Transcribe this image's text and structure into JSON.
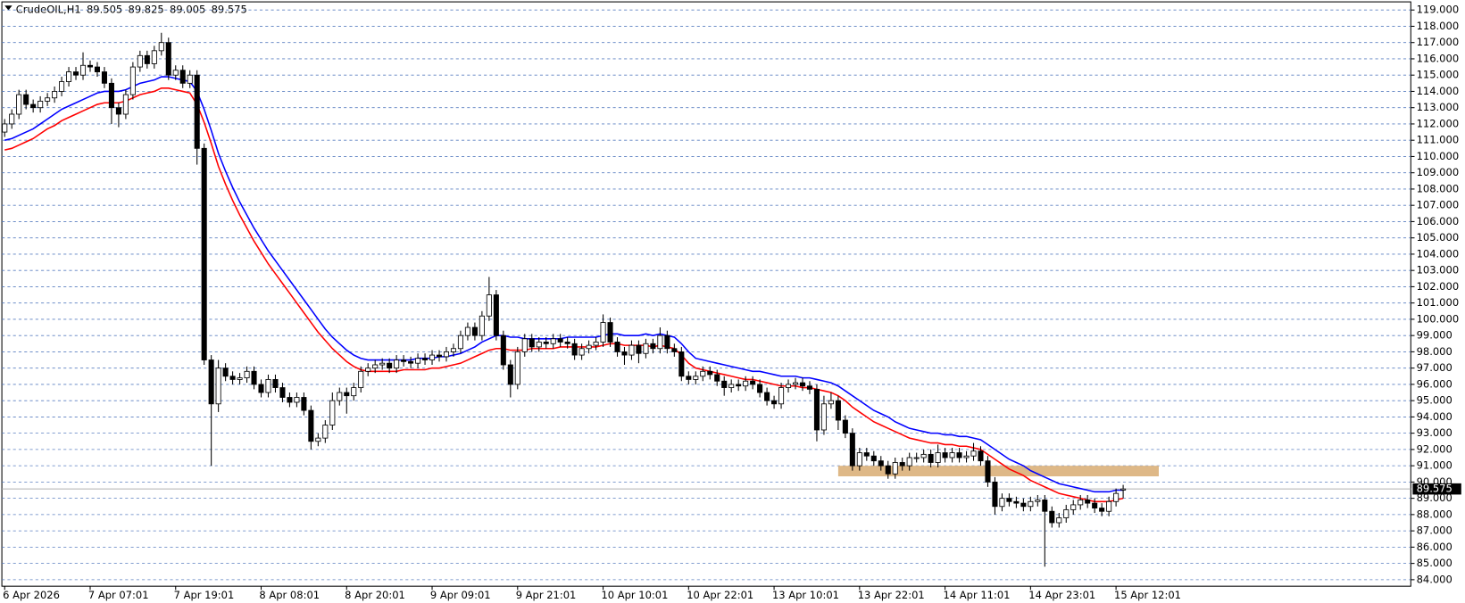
{
  "chart_data": {
    "type": "candlestick",
    "symbol": "CrudeOIL,H1",
    "categories": [
      "6 Apr 2026",
      null,
      null,
      null,
      null,
      null,
      null,
      null,
      null,
      null,
      null,
      null,
      "7 Apr 07:01",
      null,
      null,
      null,
      null,
      null,
      null,
      null,
      null,
      null,
      null,
      null,
      "7 Apr 19:01",
      null,
      null,
      null,
      null,
      null,
      null,
      null,
      null,
      null,
      null,
      null,
      "8 Apr 08:01",
      null,
      null,
      null,
      null,
      null,
      null,
      null,
      null,
      null,
      null,
      null,
      "8 Apr 20:01",
      null,
      null,
      null,
      null,
      null,
      null,
      null,
      null,
      null,
      null,
      null,
      "9 Apr 09:01",
      null,
      null,
      null,
      null,
      null,
      null,
      null,
      null,
      null,
      null,
      null,
      "9 Apr 21:01",
      null,
      null,
      null,
      null,
      null,
      null,
      null,
      null,
      null,
      null,
      null,
      "10 Apr 10:01",
      null,
      null,
      null,
      null,
      null,
      null,
      null,
      null,
      null,
      null,
      null,
      "10 Apr 22:01",
      null,
      null,
      null,
      null,
      null,
      null,
      null,
      null,
      null,
      null,
      null,
      "13 Apr 10:01",
      null,
      null,
      null,
      null,
      null,
      null,
      null,
      null,
      null,
      null,
      null,
      "13 Apr 22:01",
      null,
      null,
      null,
      null,
      null,
      null,
      null,
      null,
      null,
      null,
      null,
      "14 Apr 11:01",
      null,
      null,
      null,
      null,
      null,
      null,
      null,
      null,
      null,
      null,
      null,
      "14 Apr 23:01",
      null,
      null,
      null,
      null,
      null,
      null,
      null,
      null,
      null,
      null,
      null,
      "15 Apr 12:01",
      null
    ],
    "open": [
      111.5,
      112.0,
      112.6,
      113.8,
      113.2,
      113.0,
      113.4,
      113.6,
      114.0,
      114.6,
      115.2,
      115.0,
      115.6,
      115.5,
      115.2,
      114.5,
      113.0,
      112.6,
      113.8,
      115.5,
      116.2,
      115.7,
      116.5,
      117.0,
      115.0,
      115.3,
      114.5,
      115.0,
      110.5,
      97.5,
      94.8,
      97.0,
      96.5,
      96.3,
      96.4,
      96.8,
      96.0,
      95.5,
      96.3,
      95.8,
      95.2,
      94.9,
      95.2,
      94.4,
      92.5,
      92.7,
      93.5,
      95.0,
      95.5,
      95.3,
      95.8,
      96.8,
      97.0,
      97.2,
      97.3,
      97.0,
      97.5,
      97.4,
      97.3,
      97.6,
      97.5,
      97.8,
      97.7,
      98.0,
      98.2,
      99.0,
      99.5,
      99.0,
      100.2,
      101.5,
      99.0,
      97.2,
      96.0,
      98.0,
      98.8,
      98.3,
      98.6,
      98.5,
      98.8,
      98.6,
      98.5,
      97.8,
      98.2,
      98.4,
      98.6,
      99.8,
      98.6,
      98.0,
      97.8,
      98.4,
      97.9,
      98.5,
      98.2,
      99.0,
      98.2,
      98.0,
      96.5,
      96.3,
      96.5,
      96.8,
      96.6,
      96.2,
      95.8,
      96.0,
      95.9,
      96.2,
      96.0,
      95.5,
      95.0,
      94.8,
      95.8,
      96.0,
      96.1,
      95.9,
      95.7,
      93.2,
      94.8,
      95.0,
      93.8,
      93.0,
      91.0,
      91.8,
      91.6,
      91.3,
      91.0,
      90.5,
      91.2,
      91.0,
      91.5,
      91.5,
      91.7,
      91.2,
      91.8,
      91.5,
      91.8,
      91.5,
      91.6,
      91.9,
      91.3,
      90.0,
      88.5,
      89.0,
      88.8,
      88.7,
      88.5,
      88.8,
      88.9,
      88.2,
      87.5,
      87.8,
      88.3,
      88.6,
      88.9,
      88.7,
      88.4,
      88.2,
      88.8,
      89.505
    ],
    "high": [
      112.3,
      112.9,
      114.1,
      114.1,
      113.5,
      113.7,
      113.9,
      114.3,
      114.9,
      115.5,
      115.5,
      116.4,
      115.9,
      115.8,
      115.5,
      114.8,
      113.3,
      114.1,
      115.8,
      116.5,
      116.5,
      116.8,
      117.6,
      117.3,
      115.6,
      115.6,
      115.3,
      115.3,
      110.8,
      97.8,
      97.5,
      97.3,
      96.8,
      96.7,
      97.1,
      97.1,
      96.3,
      96.6,
      96.6,
      96.1,
      95.5,
      95.5,
      95.5,
      94.7,
      93.0,
      93.8,
      95.5,
      95.8,
      95.8,
      96.1,
      97.1,
      97.3,
      97.5,
      97.6,
      97.6,
      97.8,
      97.8,
      97.7,
      97.9,
      97.9,
      98.1,
      98.1,
      98.3,
      98.5,
      99.3,
      99.8,
      99.8,
      100.5,
      102.6,
      101.8,
      99.3,
      97.5,
      98.3,
      99.1,
      99.1,
      98.9,
      98.9,
      99.1,
      99.1,
      98.9,
      98.8,
      98.5,
      98.7,
      98.9,
      100.3,
      100.1,
      98.9,
      98.3,
      98.7,
      98.7,
      98.8,
      98.8,
      99.5,
      99.3,
      98.5,
      98.3,
      96.8,
      96.8,
      97.1,
      97.1,
      96.9,
      96.5,
      96.3,
      96.3,
      96.5,
      96.5,
      96.3,
      95.8,
      95.3,
      96.1,
      96.3,
      96.4,
      96.4,
      96.2,
      96.0,
      95.3,
      95.5,
      95.3,
      94.1,
      93.3,
      92.1,
      92.1,
      91.9,
      91.6,
      91.3,
      91.5,
      91.5,
      91.8,
      91.8,
      92.0,
      92.0,
      92.3,
      92.1,
      92.1,
      92.1,
      91.9,
      92.4,
      92.2,
      91.6,
      90.3,
      89.3,
      89.3,
      89.1,
      89.0,
      89.1,
      89.2,
      89.2,
      88.5,
      88.1,
      88.6,
      88.9,
      89.2,
      89.2,
      89.0,
      88.7,
      89.1,
      89.6,
      89.825
    ],
    "low": [
      111.2,
      111.7,
      112.3,
      112.9,
      112.7,
      112.7,
      113.1,
      113.3,
      113.7,
      114.3,
      114.7,
      114.7,
      115.2,
      114.9,
      114.2,
      112.0,
      111.8,
      112.3,
      113.5,
      115.2,
      115.4,
      115.4,
      116.2,
      114.7,
      114.7,
      114.2,
      114.2,
      109.5,
      97.2,
      91.0,
      94.3,
      96.2,
      96.0,
      96.0,
      96.1,
      95.7,
      95.2,
      95.2,
      95.5,
      94.9,
      94.6,
      94.6,
      94.1,
      92.0,
      92.2,
      92.4,
      93.2,
      94.7,
      94.2,
      95.0,
      95.5,
      96.5,
      96.7,
      96.9,
      96.7,
      96.7,
      97.1,
      97.0,
      97.0,
      97.2,
      97.2,
      97.4,
      97.4,
      97.7,
      97.9,
      98.7,
      98.7,
      98.7,
      99.9,
      98.7,
      96.9,
      95.2,
      95.7,
      97.7,
      98.0,
      98.0,
      98.2,
      98.2,
      98.3,
      98.2,
      97.5,
      97.5,
      97.9,
      98.1,
      98.3,
      98.3,
      97.7,
      97.2,
      97.5,
      97.3,
      97.6,
      97.9,
      97.9,
      97.9,
      97.7,
      96.2,
      96.0,
      96.0,
      96.2,
      96.3,
      95.9,
      95.3,
      95.5,
      95.6,
      95.6,
      95.7,
      95.2,
      94.7,
      94.5,
      94.5,
      95.5,
      95.7,
      95.6,
      95.4,
      92.5,
      92.9,
      94.5,
      93.2,
      92.7,
      90.7,
      90.7,
      91.3,
      91.0,
      90.7,
      90.2,
      90.2,
      90.7,
      90.7,
      91.2,
      91.2,
      90.9,
      90.9,
      91.2,
      91.2,
      91.2,
      91.2,
      91.3,
      91.0,
      89.7,
      88.0,
      88.2,
      88.5,
      88.4,
      88.2,
      88.2,
      88.5,
      84.8,
      87.2,
      87.2,
      87.5,
      88.0,
      88.3,
      88.4,
      88.1,
      87.9,
      87.9,
      88.5,
      89.005
    ],
    "close": [
      112.0,
      112.6,
      113.8,
      113.2,
      113.0,
      113.4,
      113.6,
      114.0,
      114.6,
      115.2,
      115.0,
      115.6,
      115.5,
      115.2,
      114.5,
      113.0,
      112.6,
      113.8,
      115.5,
      116.2,
      115.7,
      116.5,
      117.0,
      115.0,
      115.3,
      114.5,
      115.0,
      110.5,
      97.5,
      94.8,
      97.0,
      96.5,
      96.3,
      96.4,
      96.8,
      96.0,
      95.5,
      96.3,
      95.8,
      95.2,
      94.9,
      95.2,
      94.4,
      92.5,
      92.7,
      93.5,
      95.0,
      95.5,
      95.3,
      95.8,
      96.8,
      97.0,
      97.2,
      97.3,
      97.0,
      97.5,
      97.4,
      97.3,
      97.6,
      97.5,
      97.8,
      97.7,
      98.0,
      98.2,
      99.0,
      99.5,
      99.0,
      100.2,
      101.5,
      99.0,
      97.2,
      96.0,
      98.0,
      98.8,
      98.3,
      98.6,
      98.5,
      98.8,
      98.6,
      98.5,
      97.8,
      98.2,
      98.4,
      98.6,
      99.8,
      98.6,
      98.0,
      97.8,
      98.4,
      97.9,
      98.5,
      98.2,
      99.0,
      98.2,
      98.0,
      96.5,
      96.3,
      96.5,
      96.8,
      96.6,
      96.2,
      95.8,
      96.0,
      95.9,
      96.2,
      96.0,
      95.5,
      95.0,
      94.8,
      95.8,
      96.0,
      96.1,
      95.9,
      95.7,
      93.2,
      94.8,
      95.0,
      93.8,
      93.0,
      91.0,
      91.8,
      91.6,
      91.3,
      91.0,
      90.5,
      91.2,
      91.0,
      91.5,
      91.5,
      91.7,
      91.2,
      91.8,
      91.5,
      91.8,
      91.5,
      91.6,
      91.9,
      91.3,
      90.0,
      88.5,
      89.0,
      88.8,
      88.7,
      88.5,
      88.8,
      88.9,
      88.2,
      87.5,
      87.8,
      88.3,
      88.6,
      88.9,
      88.7,
      88.4,
      88.2,
      88.8,
      89.3,
      89.575
    ],
    "series": [
      {
        "color": "#0000ff",
        "values": [
          111.0,
          111.1,
          111.3,
          111.5,
          111.7,
          112.0,
          112.3,
          112.6,
          112.9,
          113.1,
          113.3,
          113.5,
          113.7,
          113.9,
          114.0,
          114.0,
          114.0,
          114.1,
          114.3,
          114.5,
          114.6,
          114.7,
          114.9,
          114.9,
          114.8,
          114.7,
          114.6,
          114.0,
          112.9,
          111.6,
          110.2,
          109.1,
          108.1,
          107.2,
          106.4,
          105.6,
          104.9,
          104.2,
          103.6,
          103.0,
          102.4,
          101.8,
          101.2,
          100.6,
          100.0,
          99.4,
          98.9,
          98.5,
          98.1,
          97.8,
          97.6,
          97.5,
          97.5,
          97.5,
          97.5,
          97.5,
          97.5,
          97.5,
          97.6,
          97.6,
          97.6,
          97.7,
          97.7,
          97.8,
          97.9,
          98.1,
          98.3,
          98.6,
          98.8,
          99.0,
          99.0,
          98.9,
          98.9,
          98.8,
          98.8,
          98.8,
          98.8,
          98.8,
          98.8,
          98.9,
          98.9,
          98.9,
          98.9,
          98.9,
          99.0,
          99.1,
          99.1,
          99.0,
          99.0,
          99.0,
          99.1,
          99.0,
          99.1,
          99.0,
          98.9,
          98.5,
          98.0,
          97.6,
          97.5,
          97.4,
          97.3,
          97.2,
          97.1,
          97.0,
          96.9,
          96.8,
          96.8,
          96.7,
          96.6,
          96.5,
          96.5,
          96.5,
          96.4,
          96.4,
          96.3,
          96.2,
          96.1,
          95.9,
          95.6,
          95.3,
          95.0,
          94.7,
          94.4,
          94.2,
          94.0,
          93.7,
          93.5,
          93.3,
          93.2,
          93.1,
          93.0,
          93.0,
          92.9,
          92.9,
          92.8,
          92.8,
          92.7,
          92.6,
          92.3,
          92.0,
          91.7,
          91.4,
          91.2,
          91.0,
          90.7,
          90.5,
          90.3,
          90.1,
          89.9,
          89.8,
          89.7,
          89.6,
          89.5,
          89.4,
          89.4,
          89.4,
          89.5,
          89.5
        ]
      },
      {
        "color": "#ff0000",
        "values": [
          110.4,
          110.5,
          110.7,
          110.9,
          111.1,
          111.4,
          111.7,
          111.9,
          112.2,
          112.4,
          112.6,
          112.8,
          113.0,
          113.2,
          113.3,
          113.3,
          113.3,
          113.4,
          113.6,
          113.8,
          113.9,
          114.0,
          114.2,
          114.2,
          114.1,
          114.0,
          113.9,
          113.2,
          112.1,
          110.8,
          109.4,
          108.3,
          107.3,
          106.4,
          105.6,
          104.8,
          104.1,
          103.4,
          102.8,
          102.2,
          101.6,
          101.0,
          100.4,
          99.8,
          99.2,
          98.7,
          98.2,
          97.8,
          97.4,
          97.1,
          96.9,
          96.8,
          96.8,
          96.8,
          96.8,
          96.8,
          96.9,
          96.9,
          96.9,
          96.9,
          97.0,
          97.0,
          97.1,
          97.2,
          97.3,
          97.5,
          97.7,
          97.9,
          98.1,
          98.2,
          98.2,
          98.1,
          98.1,
          98.1,
          98.2,
          98.2,
          98.2,
          98.2,
          98.3,
          98.3,
          98.3,
          98.3,
          98.3,
          98.3,
          98.4,
          98.5,
          98.5,
          98.4,
          98.4,
          98.4,
          98.4,
          98.3,
          98.4,
          98.3,
          98.2,
          97.8,
          97.3,
          97.0,
          96.9,
          96.8,
          96.7,
          96.6,
          96.5,
          96.4,
          96.3,
          96.3,
          96.2,
          96.1,
          96.0,
          95.9,
          95.9,
          95.9,
          95.8,
          95.8,
          95.7,
          95.6,
          95.5,
          95.3,
          95.0,
          94.6,
          94.3,
          94.0,
          93.7,
          93.5,
          93.3,
          93.1,
          92.9,
          92.7,
          92.6,
          92.5,
          92.4,
          92.4,
          92.3,
          92.3,
          92.2,
          92.2,
          92.1,
          92.0,
          91.7,
          91.4,
          91.1,
          90.8,
          90.6,
          90.4,
          90.1,
          89.9,
          89.7,
          89.5,
          89.3,
          89.2,
          89.1,
          89.0,
          88.9,
          88.8,
          88.8,
          88.8,
          88.9,
          89.0
        ]
      }
    ],
    "zone": {
      "low": 90.35,
      "high": 91.0,
      "from": 117,
      "to": 162,
      "color": "#deb887"
    },
    "ylim": [
      83.6,
      119.5
    ],
    "yticks": [
      {
        "value": 84,
        "label": "84.000"
      },
      {
        "value": 85,
        "label": "85.000"
      },
      {
        "value": 86,
        "label": "86.000"
      },
      {
        "value": 87,
        "label": "87.000"
      },
      {
        "value": 88,
        "label": "88.000"
      },
      {
        "value": 89,
        "label": "89.000"
      },
      {
        "value": 90,
        "label": "90.000"
      },
      {
        "value": 91,
        "label": "91.000"
      },
      {
        "value": 92,
        "label": "92.000"
      },
      {
        "value": 93,
        "label": "93.000"
      },
      {
        "value": 94,
        "label": "94.000"
      },
      {
        "value": 95,
        "label": "95.000"
      },
      {
        "value": 96,
        "label": "96.000"
      },
      {
        "value": 97,
        "label": "97.000"
      },
      {
        "value": 98,
        "label": "98.000"
      },
      {
        "value": 99,
        "label": "99.000"
      },
      {
        "value": 100,
        "label": "100.000"
      },
      {
        "value": 101,
        "label": "101.000"
      },
      {
        "value": 102,
        "label": "102.000"
      },
      {
        "value": 103,
        "label": "103.000"
      },
      {
        "value": 104,
        "label": "104.000"
      },
      {
        "value": 105,
        "label": "105.000"
      },
      {
        "value": 106,
        "label": "106.000"
      },
      {
        "value": 107,
        "label": "107.000"
      },
      {
        "value": 108,
        "label": "108.000"
      },
      {
        "value": 109,
        "label": "109.000"
      },
      {
        "value": 110,
        "label": "110.000"
      },
      {
        "value": 111,
        "label": "111.000"
      },
      {
        "value": 112,
        "label": "112.000"
      },
      {
        "value": 113,
        "label": "113.000"
      },
      {
        "value": 114,
        "label": "114.000"
      },
      {
        "value": 115,
        "label": "115.000"
      },
      {
        "value": 116,
        "label": "116.000"
      },
      {
        "value": 117,
        "label": "117.000"
      },
      {
        "value": 118,
        "label": "118.000"
      },
      {
        "value": 119,
        "label": "119.000"
      }
    ],
    "grid": true
  }
}
